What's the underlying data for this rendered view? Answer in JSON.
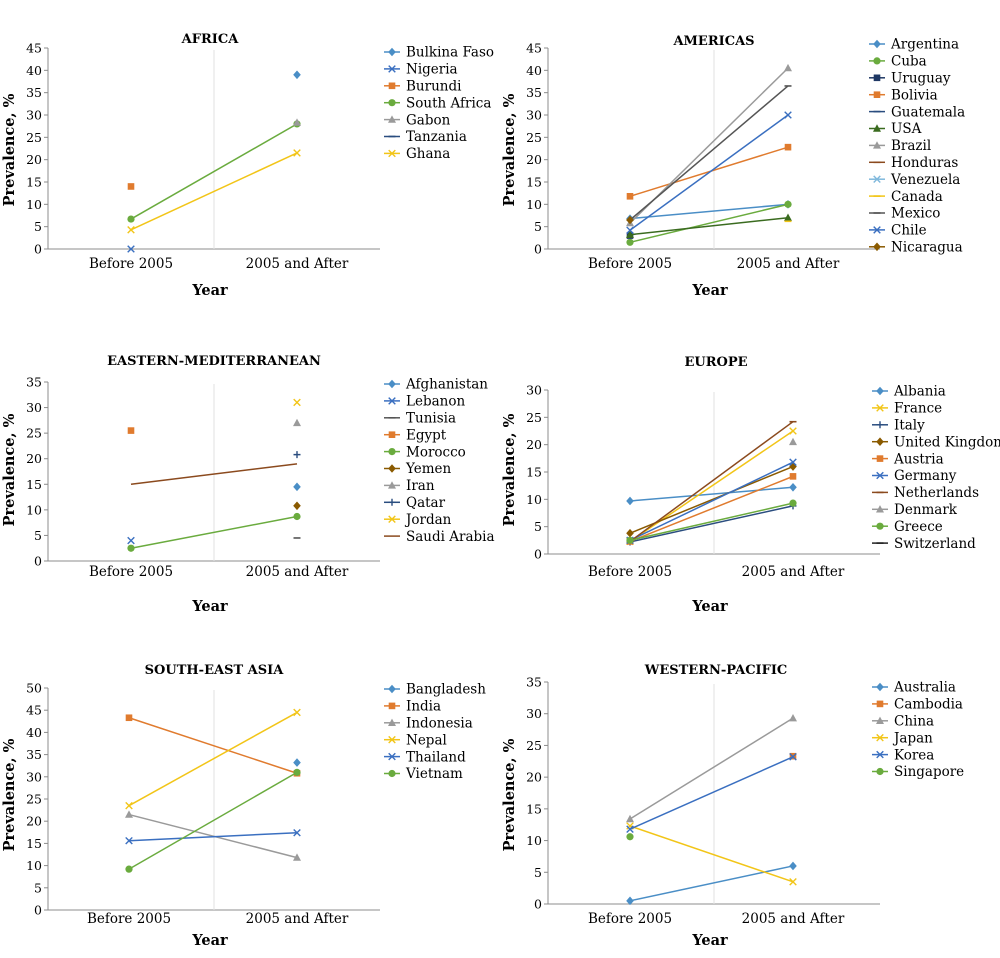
{
  "colors": {
    "blue": "#4a8ec6",
    "navy": "#1f3864",
    "orange": "#e07b2e",
    "green": "#6aab3e",
    "gray": "#9a9a9a",
    "darknavy": "#2a4d7f",
    "yellow": "#f2c518",
    "darkgreen": "#3a6b1f",
    "brown": "#8b4a1e",
    "lightblue": "#7fb8dc",
    "darkgray": "#555555",
    "medblue": "#3a6fc0",
    "olive": "#8a5a00",
    "black": "#222222"
  },
  "chart_data": [
    {
      "type": "line",
      "title": "AFRICA",
      "categories": [
        "Before 2005",
        "2005 and After"
      ],
      "xlabel": "Year",
      "ylabel": "Prevalence, %",
      "ylim": [
        0,
        45
      ],
      "ystep": 5,
      "grid": false,
      "legend": "right",
      "series": [
        {
          "name": "Bulkina Faso",
          "values": [
            null,
            39
          ],
          "color": "blue",
          "marker": "diamond"
        },
        {
          "name": "Nigeria",
          "values": [
            0,
            null
          ],
          "color": "medblue",
          "marker": "x"
        },
        {
          "name": "Burundi",
          "values": [
            14,
            null
          ],
          "color": "orange",
          "marker": "square"
        },
        {
          "name": "South Africa",
          "values": [
            6.7,
            28
          ],
          "color": "green",
          "marker": "circle"
        },
        {
          "name": "Gabon",
          "values": [
            null,
            28.3
          ],
          "color": "gray",
          "marker": "triangle"
        },
        {
          "name": "Tanzania",
          "values": [
            null,
            null
          ],
          "color": "darknavy",
          "marker": "dash"
        },
        {
          "name": "Ghana",
          "values": [
            4.3,
            21.5
          ],
          "color": "yellow",
          "marker": "x"
        }
      ]
    },
    {
      "type": "line",
      "title": "AMERICAS",
      "categories": [
        "Before 2005",
        "2005 and After"
      ],
      "xlabel": "Year",
      "ylabel": "Prevalence, %",
      "ylim": [
        0,
        45
      ],
      "ystep": 5,
      "grid": false,
      "legend": "right",
      "series": [
        {
          "name": "Argentina",
          "values": [
            6.8,
            10
          ],
          "color": "blue",
          "marker": "diamond"
        },
        {
          "name": "Cuba",
          "values": [
            1.5,
            10
          ],
          "color": "green",
          "marker": "circle"
        },
        {
          "name": "Uruguay",
          "values": [
            3,
            null
          ],
          "color": "navy",
          "marker": "square"
        },
        {
          "name": "Bolivia",
          "values": [
            11.8,
            22.8
          ],
          "color": "orange",
          "marker": "square"
        },
        {
          "name": "Guatemala",
          "values": [
            null,
            null
          ],
          "color": "darknavy",
          "marker": "dash"
        },
        {
          "name": "USA",
          "values": [
            3.2,
            7
          ],
          "color": "darkgreen",
          "marker": "triangle"
        },
        {
          "name": "Brazil",
          "values": [
            5.8,
            40.5
          ],
          "color": "gray",
          "marker": "triangle"
        },
        {
          "name": "Honduras",
          "values": [
            null,
            null
          ],
          "color": "brown",
          "marker": "dash"
        },
        {
          "name": "Venezuela",
          "values": [
            null,
            null
          ],
          "color": "lightblue",
          "marker": "x"
        },
        {
          "name": "Canada",
          "values": [
            null,
            6.2
          ],
          "color": "yellow",
          "marker": "dash"
        },
        {
          "name": "Mexico",
          "values": [
            6.5,
            36.5
          ],
          "color": "darkgray",
          "marker": "dash"
        },
        {
          "name": "Chile",
          "values": [
            4.2,
            30
          ],
          "color": "medblue",
          "marker": "x"
        },
        {
          "name": "Nicaragua",
          "values": [
            6.5,
            null
          ],
          "color": "olive",
          "marker": "diamond"
        }
      ]
    },
    {
      "type": "line",
      "title": "EASTERN-MEDITERRANEAN",
      "categories": [
        "Before 2005",
        "2005 and After"
      ],
      "xlabel": "Year",
      "ylabel": "Prevalence, %",
      "ylim": [
        0,
        35
      ],
      "ystep": 5,
      "grid": false,
      "legend": "right",
      "series": [
        {
          "name": "Afghanistan",
          "values": [
            null,
            14.5
          ],
          "color": "blue",
          "marker": "diamond"
        },
        {
          "name": "Lebanon",
          "values": [
            4,
            null
          ],
          "color": "medblue",
          "marker": "x"
        },
        {
          "name": "Tunisia",
          "values": [
            null,
            4.5
          ],
          "color": "darkgray",
          "marker": "dash"
        },
        {
          "name": "Egypt",
          "values": [
            25.5,
            null
          ],
          "color": "orange",
          "marker": "square"
        },
        {
          "name": "Morocco",
          "values": [
            2.5,
            8.7
          ],
          "color": "green",
          "marker": "circle"
        },
        {
          "name": "Yemen",
          "values": [
            null,
            10.8
          ],
          "color": "olive",
          "marker": "diamond"
        },
        {
          "name": "Iran",
          "values": [
            null,
            27
          ],
          "color": "gray",
          "marker": "triangle"
        },
        {
          "name": "Qatar",
          "values": [
            null,
            20.8
          ],
          "color": "darknavy",
          "marker": "plus"
        },
        {
          "name": "Jordan",
          "values": [
            null,
            31
          ],
          "color": "yellow",
          "marker": "x"
        },
        {
          "name": "Saudi Arabia",
          "values": [
            15,
            19
          ],
          "color": "brown",
          "marker": "none"
        }
      ]
    },
    {
      "type": "line",
      "title": "EUROPE",
      "categories": [
        "Before 2005",
        "2005 and After"
      ],
      "xlabel": "Year",
      "ylabel": "Prevalence, %",
      "ylim": [
        0,
        30
      ],
      "ystep": 5,
      "grid": false,
      "legend": "right",
      "series": [
        {
          "name": "Albania",
          "values": [
            9.7,
            12.2
          ],
          "color": "blue",
          "marker": "diamond"
        },
        {
          "name": "France",
          "values": [
            2.3,
            22.5
          ],
          "color": "yellow",
          "marker": "x"
        },
        {
          "name": "Italy",
          "values": [
            2.2,
            8.8
          ],
          "color": "darknavy",
          "marker": "plus"
        },
        {
          "name": "United Kingdom",
          "values": [
            3.8,
            16
          ],
          "color": "olive",
          "marker": "diamond"
        },
        {
          "name": "Austria",
          "values": [
            2.3,
            14.2
          ],
          "color": "orange",
          "marker": "square"
        },
        {
          "name": "Germany",
          "values": [
            2.5,
            16.8
          ],
          "color": "medblue",
          "marker": "x"
        },
        {
          "name": "Netherlands",
          "values": [
            2.3,
            24.2
          ],
          "color": "brown",
          "marker": "dash"
        },
        {
          "name": "Denmark",
          "values": [
            null,
            20.5
          ],
          "color": "gray",
          "marker": "triangle"
        },
        {
          "name": "Greece",
          "values": [
            2.5,
            9.3
          ],
          "color": "green",
          "marker": "circle"
        },
        {
          "name": "Switzerland",
          "values": [
            null,
            null
          ],
          "color": "black",
          "marker": "dash"
        }
      ]
    },
    {
      "type": "line",
      "title": "SOUTH-EAST ASIA",
      "categories": [
        "Before 2005",
        "2005 and After"
      ],
      "xlabel": "Year",
      "ylabel": "Prevalence, %",
      "ylim": [
        0,
        50
      ],
      "ystep": 5,
      "grid": false,
      "legend": "right",
      "series": [
        {
          "name": "Bangladesh",
          "values": [
            null,
            33.2
          ],
          "color": "blue",
          "marker": "diamond"
        },
        {
          "name": "India",
          "values": [
            43.3,
            30.8
          ],
          "color": "orange",
          "marker": "square"
        },
        {
          "name": "Indonesia",
          "values": [
            21.5,
            11.8
          ],
          "color": "gray",
          "marker": "triangle"
        },
        {
          "name": "Nepal",
          "values": [
            23.5,
            44.5
          ],
          "color": "yellow",
          "marker": "x"
        },
        {
          "name": "Thailand",
          "values": [
            15.6,
            17.4
          ],
          "color": "medblue",
          "marker": "x"
        },
        {
          "name": "Vietnam",
          "values": [
            9.2,
            31
          ],
          "color": "green",
          "marker": "circle"
        }
      ]
    },
    {
      "type": "line",
      "title": "WESTERN-PACIFIC",
      "categories": [
        "Before 2005",
        "2005 and After"
      ],
      "xlabel": "Year",
      "ylabel": "Prevalence, %",
      "ylim": [
        0,
        35
      ],
      "ystep": 5,
      "grid": false,
      "legend": "right",
      "series": [
        {
          "name": "Australia",
          "values": [
            0.5,
            6
          ],
          "color": "blue",
          "marker": "diamond"
        },
        {
          "name": "Cambodia",
          "values": [
            null,
            23.3
          ],
          "color": "orange",
          "marker": "square"
        },
        {
          "name": "China",
          "values": [
            13.4,
            29.3
          ],
          "color": "gray",
          "marker": "triangle"
        },
        {
          "name": "Japan",
          "values": [
            12.3,
            3.5
          ],
          "color": "yellow",
          "marker": "x"
        },
        {
          "name": "Korea",
          "values": [
            11.8,
            23.2
          ],
          "color": "medblue",
          "marker": "x"
        },
        {
          "name": "Singapore",
          "values": [
            10.6,
            null
          ],
          "color": "green",
          "marker": "circle"
        }
      ]
    }
  ]
}
